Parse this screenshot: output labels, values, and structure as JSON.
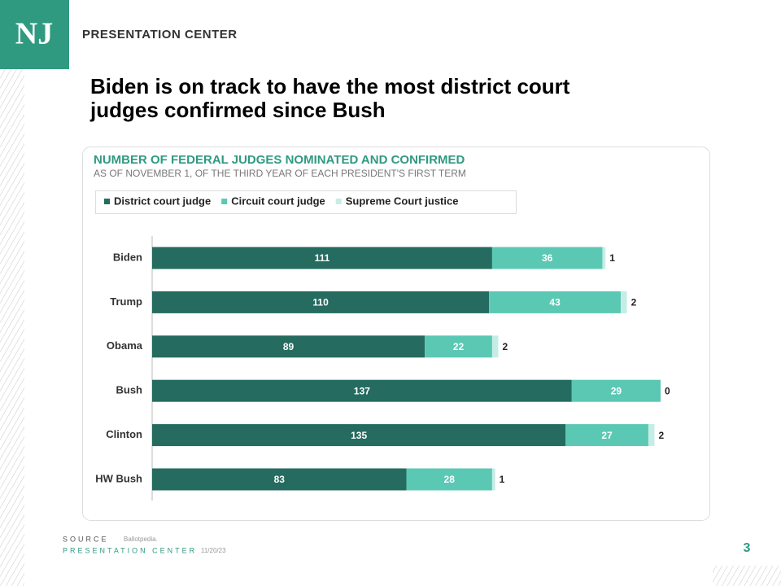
{
  "header": {
    "logo": "NJ",
    "brand": "PRESENTATION CENTER"
  },
  "title": [
    "Biden is on track to have the most district court",
    "judges confirmed since Bush"
  ],
  "chart_data": {
    "type": "stacked-horizontal-bar",
    "title": "NUMBER OF FEDERAL JUDGES NOMINATED AND CONFIRMED",
    "subtitle": "AS OF NOVEMBER 1, OF THE THIRD  YEAR OF EACH PRESIDENT'S FIRST TERM",
    "categories": [
      "Biden",
      "Trump",
      "Obama",
      "Bush",
      "Clinton",
      "HW Bush"
    ],
    "series": [
      {
        "name": "District court judge",
        "color": "#256b5f",
        "values": [
          111,
          110,
          89,
          137,
          135,
          83
        ]
      },
      {
        "name": "Circuit court judge",
        "color": "#5bc8b4",
        "values": [
          36,
          43,
          22,
          29,
          27,
          28
        ]
      },
      {
        "name": "Supreme Court justice",
        "color": "#c5ede6",
        "values": [
          1,
          2,
          2,
          0,
          2,
          1
        ]
      }
    ]
  },
  "footer": {
    "source_label": "SOURCE",
    "source": "Ballotpedia.",
    "org": "PRESENTATION CENTER",
    "date": "11/20/23",
    "page": 3
  }
}
